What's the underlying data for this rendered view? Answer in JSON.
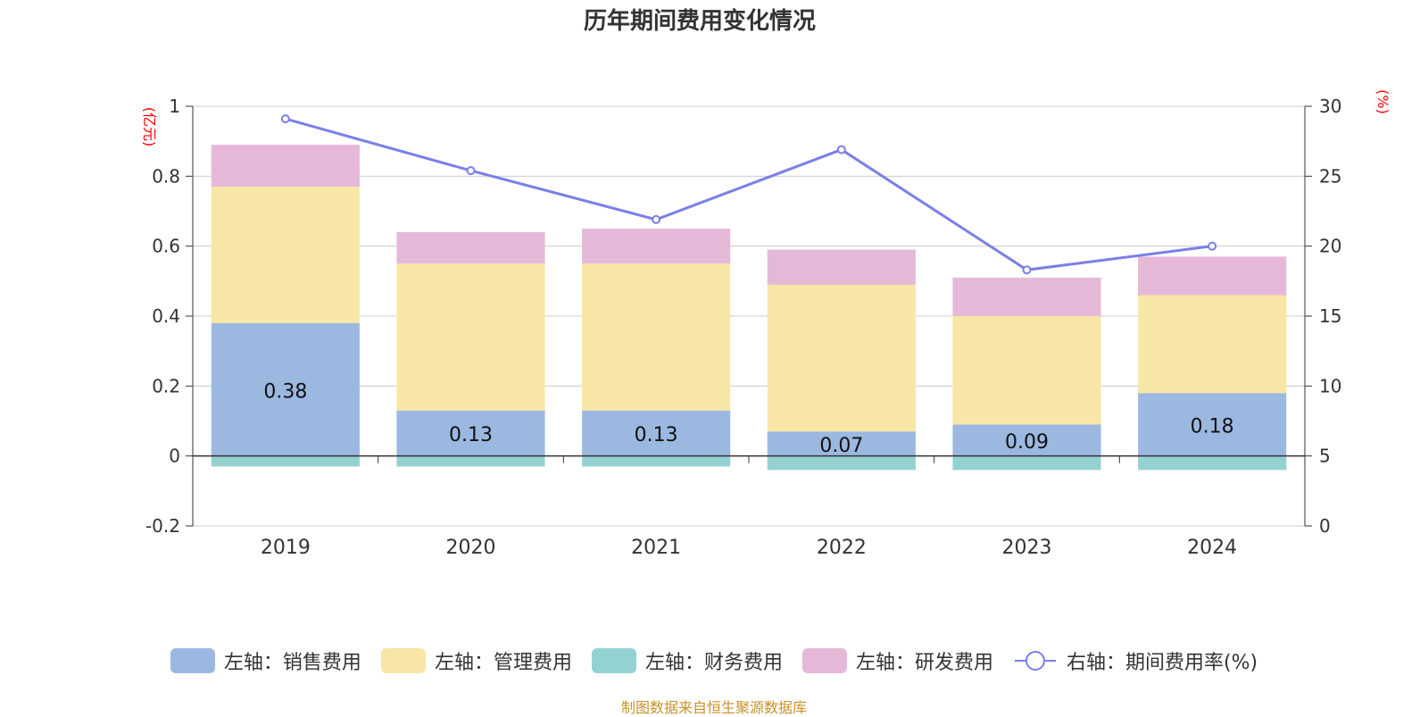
{
  "chart_data": {
    "type": "bar",
    "title": "历年期间费用变化情况",
    "categories": [
      "2019",
      "2020",
      "2021",
      "2022",
      "2023",
      "2024"
    ],
    "left_axis": {
      "unit": "(亿元)",
      "ylim": [
        -0.2,
        1.0
      ],
      "ticks": [
        "-0.2",
        "0",
        "0.2",
        "0.4",
        "0.6",
        "0.8",
        "1"
      ]
    },
    "right_axis": {
      "unit": "(%)",
      "ylim": [
        0,
        30
      ],
      "ticks": [
        "0",
        "5",
        "10",
        "15",
        "20",
        "25",
        "30"
      ]
    },
    "series": [
      {
        "name": "左轴：销售费用",
        "axis": "left",
        "stack": true,
        "color": "#9bb8e0",
        "values": [
          0.38,
          0.13,
          0.13,
          0.07,
          0.09,
          0.18
        ],
        "labels": [
          "0.38",
          "0.13",
          "0.13",
          "0.07",
          "0.09",
          "0.18"
        ]
      },
      {
        "name": "左轴：管理费用",
        "axis": "left",
        "stack": true,
        "color": "#f7e6a6",
        "values": [
          0.39,
          0.42,
          0.42,
          0.42,
          0.31,
          0.28
        ]
      },
      {
        "name": "左轴：财务费用",
        "axis": "left",
        "stack": true,
        "color": "#94d2d2",
        "values": [
          -0.03,
          -0.03,
          -0.03,
          -0.04,
          -0.04,
          -0.04
        ]
      },
      {
        "name": "左轴：研发费用",
        "axis": "left",
        "stack": true,
        "color": "#e6b8d8",
        "values": [
          0.12,
          0.09,
          0.1,
          0.1,
          0.11,
          0.11
        ]
      },
      {
        "name": "右轴：期间费用率(%)",
        "axis": "right",
        "type": "line",
        "color": "#7a7fe8",
        "values": [
          29.1,
          25.4,
          21.9,
          26.9,
          18.3,
          20.0
        ]
      }
    ]
  },
  "source_note": "制图数据来自恒生聚源数据库"
}
